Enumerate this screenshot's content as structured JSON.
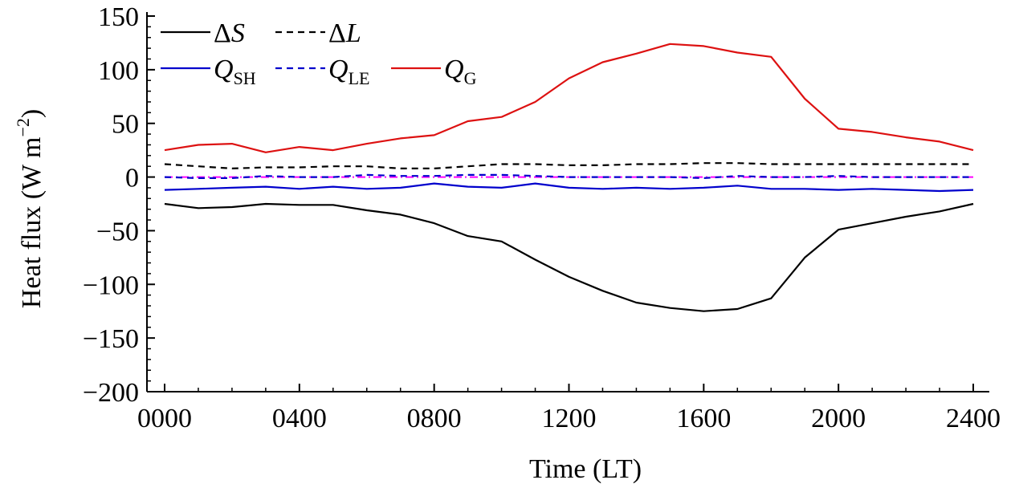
{
  "chart_data": {
    "type": "line",
    "title": "",
    "xlabel": "Time (LT)",
    "ylabel": "Heat flux (W m−2)",
    "ylabel_parts": {
      "base": "Heat flux (W m",
      "sup": "−2",
      "close": ")"
    },
    "xlim": [
      0,
      24
    ],
    "ylim": [
      -200,
      150
    ],
    "x_ticks": [
      0,
      4,
      8,
      12,
      16,
      20,
      24
    ],
    "x_tick_labels": [
      "0000",
      "0400",
      "0800",
      "1200",
      "1600",
      "2000",
      "2400"
    ],
    "y_ticks": [
      -200,
      -150,
      -100,
      -50,
      0,
      50,
      100,
      150
    ],
    "y_tick_labels": [
      "−200",
      "−150",
      "−100",
      "−50",
      "0",
      "50",
      "100",
      "150"
    ],
    "grid": false,
    "legend_position": "top-left",
    "x": [
      0,
      1,
      2,
      3,
      4,
      5,
      6,
      7,
      8,
      9,
      10,
      11,
      12,
      13,
      14,
      15,
      16,
      17,
      18,
      19,
      20,
      21,
      22,
      23,
      24
    ],
    "series": [
      {
        "name": "ΔS",
        "legend_main": "Δ",
        "legend_italic": "S",
        "legend_sub": "",
        "color": "#000000",
        "dash": "solid",
        "values": [
          -25,
          -29,
          -28,
          -25,
          -26,
          -26,
          -31,
          -35,
          -43,
          -55,
          -60,
          -77,
          -93,
          -106,
          -117,
          -122,
          -125,
          -123,
          -113,
          -75,
          -49,
          -43,
          -37,
          -32,
          -25
        ]
      },
      {
        "name": "ΔL",
        "legend_main": "Δ",
        "legend_italic": "L",
        "legend_sub": "",
        "color": "#000000",
        "dash": "dashed",
        "values": [
          12,
          10,
          8,
          9,
          9,
          10,
          10,
          8,
          8,
          10,
          12,
          12,
          11,
          11,
          12,
          12,
          13,
          13,
          12,
          12,
          12,
          12,
          12,
          12,
          12
        ]
      },
      {
        "name": "Q_SH",
        "legend_main": "",
        "legend_italic": "Q",
        "legend_sub": "SH",
        "color": "#0000cc",
        "dash": "solid",
        "values": [
          -12,
          -11,
          -10,
          -9,
          -11,
          -9,
          -11,
          -10,
          -6,
          -9,
          -10,
          -6,
          -10,
          -11,
          -10,
          -11,
          -10,
          -8,
          -11,
          -11,
          -12,
          -11,
          -12,
          -13,
          -12
        ]
      },
      {
        "name": "Q_LE",
        "legend_main": "",
        "legend_italic": "Q",
        "legend_sub": "LE",
        "color": "#0000cc",
        "dash": "dashed",
        "values": [
          0,
          -1,
          -1,
          1,
          0,
          0,
          2,
          1,
          1,
          2,
          2,
          1,
          0,
          0,
          0,
          0,
          -1,
          1,
          0,
          0,
          1,
          0,
          0,
          0,
          0
        ]
      },
      {
        "name": "Q_G",
        "legend_main": "",
        "legend_italic": "Q",
        "legend_sub": "G",
        "color": "#dd1111",
        "dash": "solid",
        "values": [
          25,
          30,
          31,
          23,
          28,
          25,
          31,
          36,
          39,
          52,
          56,
          70,
          92,
          107,
          115,
          124,
          122,
          116,
          112,
          73,
          45,
          42,
          37,
          33,
          25
        ]
      }
    ],
    "zero_line_color": "#ff00ff"
  }
}
